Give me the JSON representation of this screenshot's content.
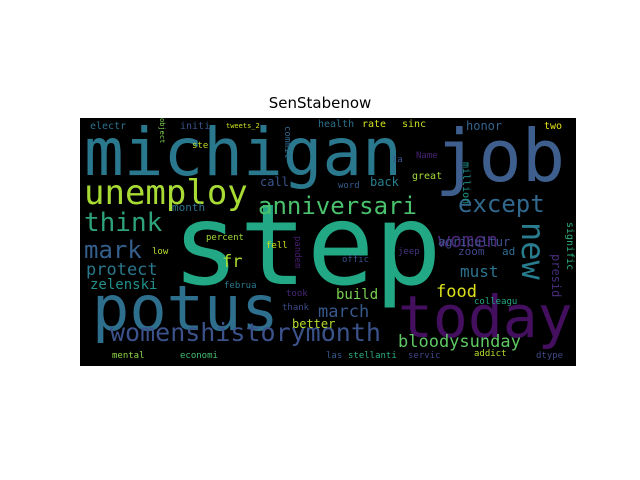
{
  "title": "SenStabenow",
  "background": "#000000",
  "words": [
    {
      "text": "step",
      "color": "#22a884"
    },
    {
      "text": "michigan",
      "color": "#2a788e"
    },
    {
      "text": "job",
      "color": "#3e5f8e"
    },
    {
      "text": "potus",
      "color": "#2e6f8e"
    },
    {
      "text": "today",
      "color": "#440f5e"
    },
    {
      "text": "unemploy",
      "color": "#a8db34"
    },
    {
      "text": "womenshistorymonth",
      "color": "#3b528b"
    },
    {
      "text": "think",
      "color": "#2ea37b"
    },
    {
      "text": "anniversari",
      "color": "#4ac16d"
    },
    {
      "text": "except",
      "color": "#31688e"
    },
    {
      "text": "new",
      "color": "#287c8e"
    },
    {
      "text": "mark",
      "color": "#355f8d"
    },
    {
      "text": "women",
      "color": "#482475"
    },
    {
      "text": "bloodysunday",
      "color": "#5ec962"
    },
    {
      "text": "protect",
      "color": "#2a788e"
    },
    {
      "text": "march",
      "color": "#38588c"
    },
    {
      "text": "food",
      "color": "#dde318"
    },
    {
      "text": "must",
      "color": "#2c728e"
    },
    {
      "text": "fr",
      "color": "#addc30"
    },
    {
      "text": "zelenski",
      "color": "#21918c"
    },
    {
      "text": "build",
      "color": "#7ad151"
    },
    {
      "text": "better",
      "color": "#b5de2b"
    },
    {
      "text": "agricultur",
      "color": "#3b528b"
    },
    {
      "text": "presid",
      "color": "#472c7a"
    },
    {
      "text": "signific",
      "color": "#2db27d"
    },
    {
      "text": "call",
      "color": "#39568c"
    },
    {
      "text": "back",
      "color": "#277f8e"
    },
    {
      "text": "month",
      "color": "#2c728e"
    },
    {
      "text": "honor",
      "color": "#33638d"
    },
    {
      "text": "zoom",
      "color": "#3f4788"
    },
    {
      "text": "ad",
      "color": "#2f6c8e"
    },
    {
      "text": "great",
      "color": "#a2da37"
    },
    {
      "text": "million",
      "color": "#1f958b"
    },
    {
      "text": "commit",
      "color": "#30698e"
    },
    {
      "text": "health",
      "color": "#2c728e"
    },
    {
      "text": "rate",
      "color": "#d2e21b"
    },
    {
      "text": "sinc",
      "color": "#c8e020"
    },
    {
      "text": "two",
      "color": "#e5e419"
    },
    {
      "text": "electr",
      "color": "#2c728e"
    },
    {
      "text": "initi",
      "color": "#3b528b"
    },
    {
      "text": "tweets_2",
      "color": "#cae11f"
    },
    {
      "text": "object",
      "color": "#7fd34e"
    },
    {
      "text": "ste",
      "color": "#bddf26"
    },
    {
      "text": "ta",
      "color": "#3b528b"
    },
    {
      "text": "Name",
      "color": "#482475"
    },
    {
      "text": "word",
      "color": "#365c8d"
    },
    {
      "text": "percent",
      "color": "#a2da37"
    },
    {
      "text": "low",
      "color": "#b8de29"
    },
    {
      "text": "fell",
      "color": "#d0e11c"
    },
    {
      "text": "pandem",
      "color": "#481b6d"
    },
    {
      "text": "jeep",
      "color": "#46337e"
    },
    {
      "text": "offic",
      "color": "#3b528b"
    },
    {
      "text": "februa",
      "color": "#2a788e"
    },
    {
      "text": "took",
      "color": "#482878"
    },
    {
      "text": "thank",
      "color": "#3e4a89"
    },
    {
      "text": "colleagu",
      "color": "#22a884"
    },
    {
      "text": "mental",
      "color": "#8bd646"
    },
    {
      "text": "economi",
      "color": "#44bf70"
    },
    {
      "text": "las",
      "color": "#365c8d"
    },
    {
      "text": "stellanti",
      "color": "#2ab07f"
    },
    {
      "text": "servic",
      "color": "#3f4788"
    },
    {
      "text": "addict",
      "color": "#b5de2b"
    },
    {
      "text": "dtype",
      "color": "#3e4a89"
    }
  ]
}
